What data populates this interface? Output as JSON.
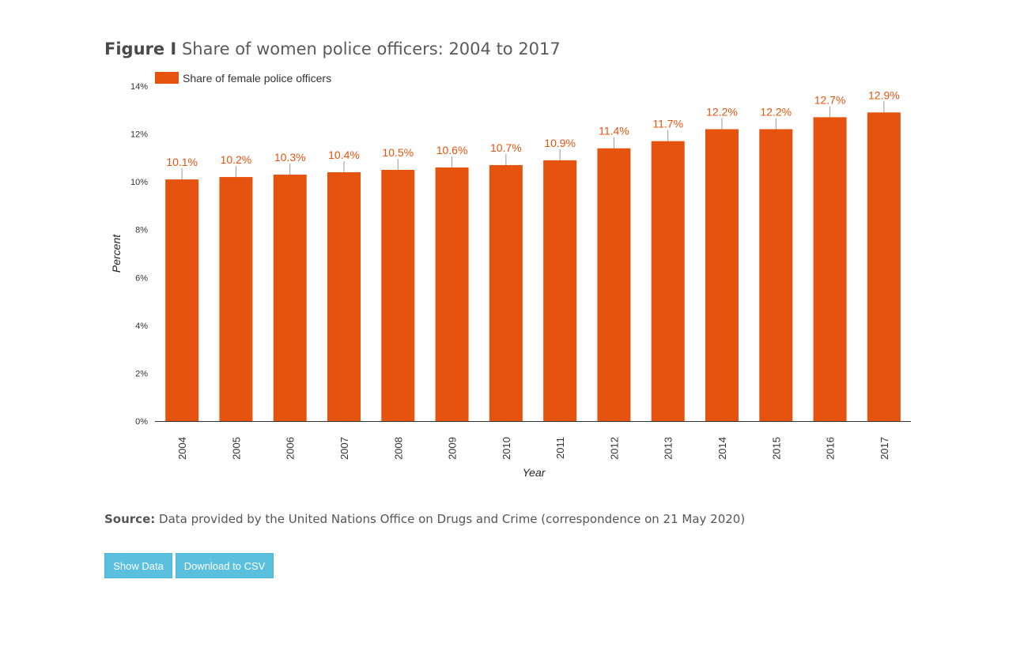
{
  "header": {
    "figure_label": "Figure I",
    "title": "Share of women police officers: 2004 to 2017"
  },
  "chart_data": {
    "type": "bar",
    "categories": [
      "2004",
      "2005",
      "2006",
      "2007",
      "2008",
      "2009",
      "2010",
      "2011",
      "2012",
      "2013",
      "2014",
      "2015",
      "2016",
      "2017"
    ],
    "series": [
      {
        "name": "Share of female police officers",
        "values": [
          10.1,
          10.2,
          10.3,
          10.4,
          10.5,
          10.6,
          10.7,
          10.9,
          11.4,
          11.7,
          12.2,
          12.2,
          12.7,
          12.9
        ],
        "labels": [
          "10.1%",
          "10.2%",
          "10.3%",
          "10.4%",
          "10.5%",
          "10.6%",
          "10.7%",
          "10.9%",
          "11.4%",
          "11.7%",
          "12.2%",
          "12.2%",
          "12.7%",
          "12.9%"
        ],
        "color": "#e5530e"
      }
    ],
    "xlabel": "Year",
    "ylabel": "Percent",
    "ylim": [
      0,
      14
    ],
    "yticks": [
      0,
      2,
      4,
      6,
      8,
      10,
      12,
      14
    ],
    "ytick_labels": [
      "0%",
      "2%",
      "4%",
      "6%",
      "8%",
      "10%",
      "12%",
      "14%"
    ],
    "legend_position": "top-left",
    "grid": false,
    "label_color": "#e5530e"
  },
  "source": {
    "label": "Source:",
    "text": "Data provided by the United Nations Office on Drugs and Crime (correspondence on 21 May 2020)"
  },
  "buttons": {
    "show_data": "Show Data",
    "download_csv": "Download to CSV"
  }
}
